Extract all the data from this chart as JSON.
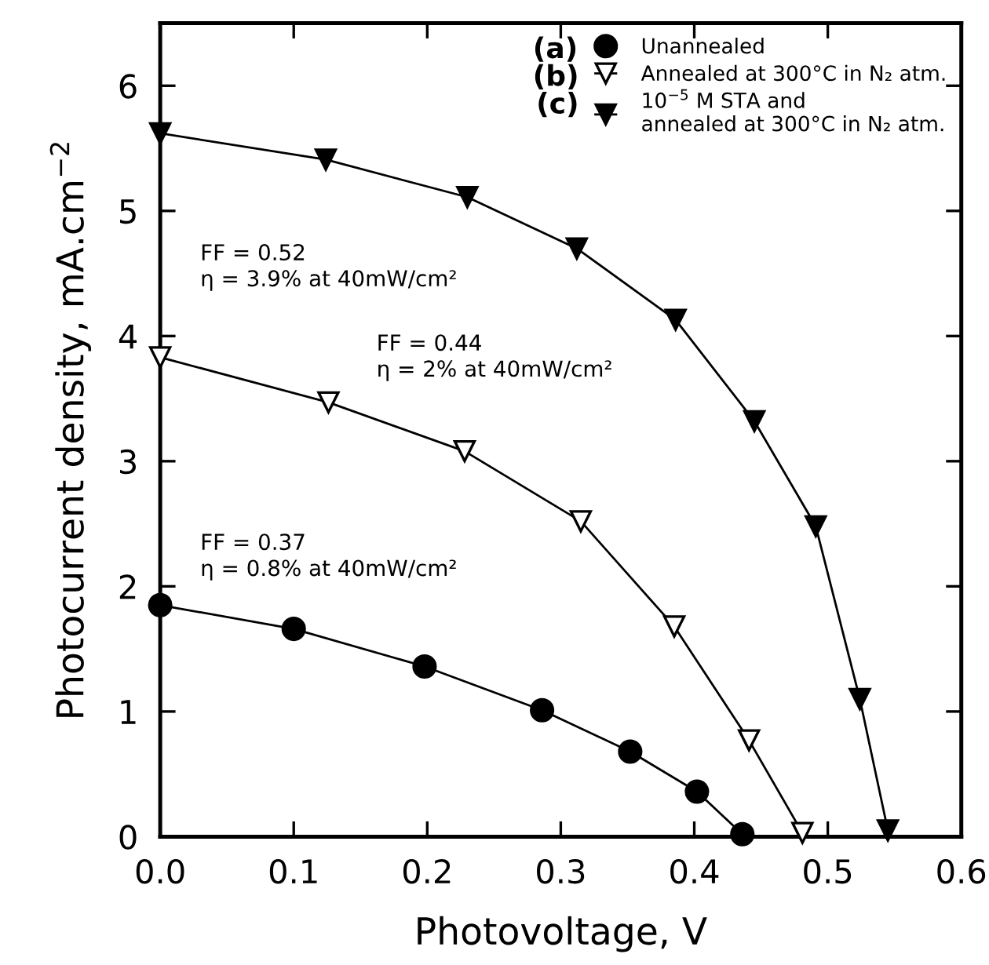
{
  "chart_data": {
    "type": "line",
    "xlabel": "Photovoltage, V",
    "ylabel": "Photocurrent density, mA.cm$^{−2}$",
    "xlim": [
      0,
      0.6
    ],
    "ylim": [
      0,
      6.5
    ],
    "xticks": [
      {
        "value": 0,
        "label": "0.0"
      },
      0.1,
      0.2,
      0.3,
      0.4,
      0.5,
      0.6
    ],
    "yticks": [
      0,
      1,
      2,
      3,
      4,
      5,
      6
    ],
    "grid": false,
    "legend": "top right",
    "line_style": "solid",
    "series": [
      {
        "name": "Unannealed",
        "color": "#000000",
        "marker": "circle",
        "x": [
          0,
          0.1,
          0.198,
          0.286,
          0.352,
          0.402,
          0.436
        ],
        "values": [
          1.85,
          1.66,
          1.36,
          1.01,
          0.68,
          0.36,
          0.02
        ]
      },
      {
        "name": "Annealed at 300°C in N₂ atm.",
        "marker": "triangle",
        "color": "#ffffff",
        "x": [
          0,
          0.126,
          0.228,
          0.315,
          0.385,
          0.441,
          0.481
        ],
        "values": [
          3.83,
          3.47,
          3.08,
          2.52,
          1.68,
          0.77,
          0.03
        ]
      },
      {
        "name": "10$^{−5}$ M STA and\nannealed at 300°C in N₂ atm.",
        "color": "#000000",
        "marker": "triangle",
        "x": [
          0,
          0.124,
          0.23,
          0.312,
          0.386,
          0.445,
          0.491,
          0.524,
          0.545
        ],
        "values": [
          5.62,
          5.41,
          5.11,
          4.7,
          4.13,
          3.32,
          2.48,
          1.1,
          0.05
        ]
      }
    ],
    "annotations": [
      "(a)",
      "(b)",
      "(c)",
      "FF = 0.52\nη = 3.9% at 40mW/cm²",
      "FF = 0.44\nη = 2% at 40mW/cm²",
      "FF = 0.37\nη = 0.8% at 40mW/cm²"
    ]
  }
}
